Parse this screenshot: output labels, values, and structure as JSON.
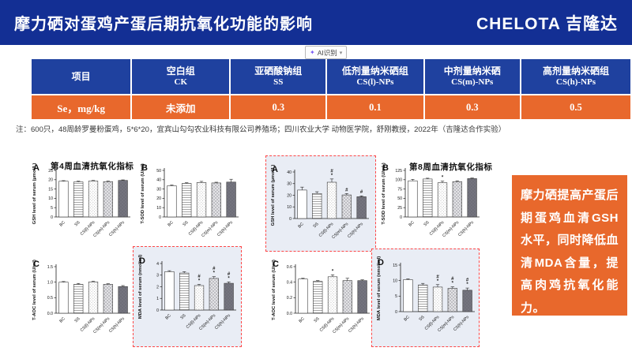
{
  "header": {
    "title": "摩力硒对蛋鸡产蛋后期抗氧化功能的影响",
    "logo": "CHELOTA 吉隆达"
  },
  "ai_widget": {
    "label": "AI识别",
    "sparkle": "✦",
    "caret": "▾"
  },
  "table": {
    "columns": [
      {
        "cn": "项目",
        "en": ""
      },
      {
        "cn": "空白组",
        "en": "CK"
      },
      {
        "cn": "亚硒酸钠组",
        "en": "SS"
      },
      {
        "cn": "低剂量纳米硒组",
        "en": "CS(l)-NPs"
      },
      {
        "cn": "中剂量纳米硒",
        "en": "CS(m)-NPs"
      },
      {
        "cn": "高剂量纳米硒组",
        "en": "CS(h)-NPs"
      }
    ],
    "row": {
      "label": "Se，mg/kg",
      "values": [
        "未添加",
        "0.3",
        "0.1",
        "0.3",
        "0.5"
      ]
    }
  },
  "note": "注：600只，48周龄罗曼粉蛋鸡，5*6*20，宜宾山勾勾农业科技有限公司养殖场；四川农业大学 动物医学院，舒刚教授，2022年（吉隆达合作实验）",
  "conclusion": "摩力硒提高产蛋后期蛋鸡血清GSH水平，同时降低血清MDA含量，提高肉鸡抗氧化能力。",
  "colors": {
    "header_blue": "#132f94",
    "table_blue": "#1f419f",
    "orange": "#e8682c",
    "highlight_border": "#ff4747",
    "highlight_bg": "#e9edf5"
  },
  "chart_data": [
    {
      "id": "w4A",
      "panel": "A",
      "group_title": "第4周血清抗氧化指标",
      "type": "bar",
      "ylabel": "GSH level of serum (μmol/L)",
      "ylim": [
        0,
        25
      ],
      "yticks": [
        "0",
        "5",
        "10",
        "15",
        "20",
        "25"
      ],
      "categories": [
        "BC",
        "SS",
        "CS(l)-NPs",
        "CS(m)-NPs",
        "CS(h)-NPs"
      ],
      "values": [
        19.2,
        18.8,
        19.3,
        19.0,
        19.6
      ],
      "errors": [
        0.3,
        0.4,
        0.3,
        0.3,
        0.3
      ],
      "sig": [
        "",
        "",
        "",
        "",
        ""
      ],
      "highlighted": false
    },
    {
      "id": "w4B",
      "panel": "B",
      "type": "bar",
      "ylabel": "T-SOD level of serum (U/ml)",
      "ylim": [
        0,
        50
      ],
      "yticks": [
        "0",
        "10",
        "20",
        "30",
        "40",
        "50"
      ],
      "categories": [
        "BC",
        "SS",
        "CS(l)-NPs",
        "CS(m)-NPs",
        "CS(h)-NPs"
      ],
      "values": [
        33.5,
        36.0,
        37.0,
        36.5,
        37.5
      ],
      "errors": [
        0.8,
        0.8,
        1.2,
        0.8,
        3.0
      ],
      "sig": [
        "",
        "",
        "",
        "",
        ""
      ],
      "highlighted": false
    },
    {
      "id": "w4C",
      "panel": "C",
      "type": "bar",
      "ylabel": "T-AOC level of serum (U/ml)",
      "ylim": [
        0,
        1.5
      ],
      "yticks": [
        "0.0",
        "0.5",
        "1.0",
        "1.5"
      ],
      "categories": [
        "BC",
        "SS",
        "CS(l)-NPs",
        "CS(m)-NPs",
        "CS(h)-NPs"
      ],
      "values": [
        1.0,
        0.93,
        1.01,
        0.93,
        0.86
      ],
      "errors": [
        0.02,
        0.03,
        0.02,
        0.02,
        0.03
      ],
      "sig": [
        "",
        "",
        "",
        "",
        ""
      ],
      "highlighted": false
    },
    {
      "id": "w4D",
      "panel": "D",
      "type": "bar",
      "ylabel": "MDA level of serum (nmol/ml)",
      "ylim": [
        0,
        4
      ],
      "yticks": [
        "0",
        "1",
        "2",
        "3",
        "4"
      ],
      "categories": [
        "BC",
        "SS",
        "CS(l)-NPs",
        "CS(m)-NPs",
        "CS(h)-NPs"
      ],
      "values": [
        3.3,
        3.18,
        2.1,
        2.72,
        2.3
      ],
      "errors": [
        0.08,
        0.12,
        0.1,
        0.15,
        0.12
      ],
      "sig": [
        "",
        "",
        "#*",
        "#*",
        "#*"
      ],
      "highlighted": true
    },
    {
      "id": "w8A",
      "panel": "A",
      "type": "bar",
      "ylabel": "GSH level of serum (μmol/L)",
      "ylim": [
        0,
        40
      ],
      "yticks": [
        "0",
        "10",
        "20",
        "30",
        "40"
      ],
      "categories": [
        "BC",
        "SS",
        "CS(l)-NPs",
        "CS(m)-NPs",
        "CS(h)-NPs"
      ],
      "values": [
        24.5,
        21.5,
        31.2,
        20.3,
        18.7
      ],
      "errors": [
        2.5,
        1.5,
        2.8,
        1.2,
        0.8
      ],
      "sig": [
        "",
        "",
        "#*",
        "#",
        "#"
      ],
      "highlighted": true
    },
    {
      "id": "w8B",
      "panel": "B",
      "group_title": "第8周血清抗氧化指标",
      "type": "bar",
      "ylabel": "T-SOD level of serum (U/mL)",
      "ylim": [
        0,
        125
      ],
      "yticks": [
        "0",
        "25",
        "50",
        "75",
        "100",
        "125"
      ],
      "categories": [
        "BC",
        "SS",
        "CS(l)-NPs",
        "CS(m)-NPs",
        "CS(h)-NPs"
      ],
      "values": [
        97,
        102,
        92,
        95,
        103
      ],
      "errors": [
        4,
        2,
        4,
        2,
        1.5
      ],
      "sig": [
        "",
        "",
        "*",
        "",
        ""
      ],
      "highlighted": false
    },
    {
      "id": "w8C",
      "panel": "C",
      "type": "bar",
      "ylabel": "T-AOC level of serum (U/ml)",
      "ylim": [
        0,
        0.6
      ],
      "yticks": [
        "0.0",
        "0.2",
        "0.4",
        "0.6"
      ],
      "categories": [
        "BC",
        "SS",
        "CS(l)-NPs",
        "CS(m)-NPs",
        "CS(h)-NPs"
      ],
      "values": [
        0.44,
        0.41,
        0.47,
        0.42,
        0.42
      ],
      "errors": [
        0.01,
        0.01,
        0.025,
        0.03,
        0.01
      ],
      "sig": [
        "",
        "",
        "*",
        "",
        ""
      ],
      "highlighted": false
    },
    {
      "id": "w8D",
      "panel": "D",
      "type": "bar",
      "ylabel": "MDA level of serum (nmol/ml)",
      "ylim": [
        0,
        15
      ],
      "yticks": [
        "0",
        "5",
        "10",
        "15"
      ],
      "categories": [
        "BC",
        "SS",
        "CS(l)-NPs",
        "CS(m)-NPs",
        "CS(h)-NPs"
      ],
      "values": [
        10.3,
        8.6,
        7.9,
        7.5,
        6.9
      ],
      "errors": [
        0.25,
        0.5,
        0.8,
        0.5,
        0.7
      ],
      "sig": [
        "",
        "",
        "#*",
        "#*",
        "#*"
      ],
      "highlighted": true
    }
  ]
}
